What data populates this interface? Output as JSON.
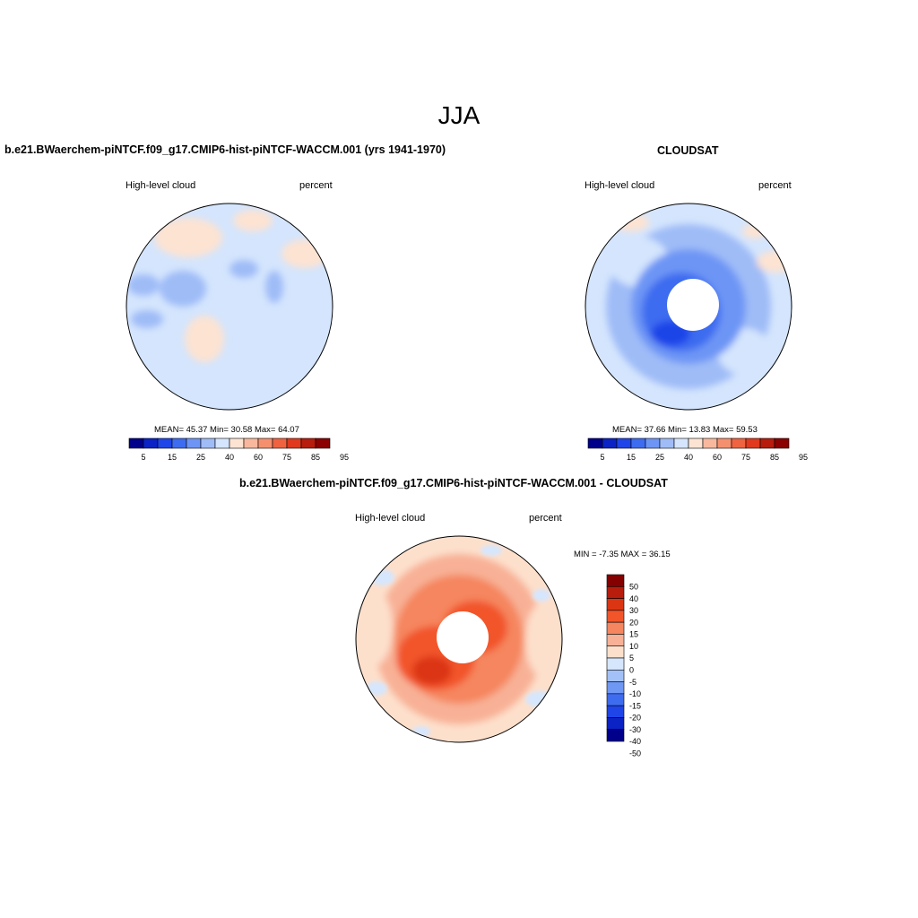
{
  "figure": {
    "title": "JJA"
  },
  "panels": [
    {
      "id": "model",
      "title": "b.e21.BWaerchem-piNTCF.f09_g17.CMIP6-hist-piNTCF-WACCM.001 (yrs 1941-1970)",
      "left_label": "High-level cloud",
      "right_label": "percent",
      "stats": "MEAN=  45.37  Min=  30.58  Max=  64.07",
      "stats_values": {
        "mean": 45.37,
        "min": 30.58,
        "max": 64.07
      },
      "colorbar_ticks": [
        "5",
        "15",
        "25",
        "40",
        "60",
        "75",
        "85",
        "95"
      ],
      "field": "mostly light blue (40-60%) with beige (60-75%) patches over Siberia, Greenland and the North Atlantic; blue (30-40%) patches over the Canadian Archipelago"
    },
    {
      "id": "obs",
      "title": "CLOUDSAT",
      "left_label": "High-level cloud",
      "right_label": "percent",
      "stats": "MEAN=  37.66  Min=  13.83  Max=  59.53",
      "stats_values": {
        "mean": 37.66,
        "min": 13.83,
        "max": 59.53
      },
      "colorbar_ticks": [
        "5",
        "15",
        "25",
        "40",
        "60",
        "75",
        "85",
        "95"
      ],
      "field": "blue decreasing toward the pole (15-40%), missing data poleward of ~82N, beige patches near Europe and Alaska"
    },
    {
      "id": "diff",
      "title": "b.e21.BWaerchem-piNTCF.f09_g17.CMIP6-hist-piNTCF-WACCM.001 - CLOUDSAT",
      "left_label": "High-level cloud",
      "right_label": "percent",
      "stats": "MIN =  -7.35 MAX =  36.15",
      "stats_values": {
        "min": -7.35,
        "max": 36.15
      },
      "colorbar_ticks": [
        "50",
        "40",
        "30",
        "20",
        "15",
        "10",
        "5",
        "0",
        "-5",
        "-10",
        "-15",
        "-20",
        "-30",
        "-40",
        "-50"
      ],
      "field": "positive (red/orange) biases over the Arctic, strongest over Greenland and the Canadian Archipelago; light blue patches along the margins"
    }
  ],
  "palettes": {
    "abs": [
      "#00008b",
      "#0b22c4",
      "#1f45e8",
      "#3e6cf0",
      "#6d95f5",
      "#9fbcf7",
      "#d4e5fd",
      "#fde3d2",
      "#f8b89e",
      "#f5906e",
      "#ef6341",
      "#e0391d",
      "#b71c0c",
      "#8b0000"
    ],
    "diff": [
      "#850000",
      "#b81c0c",
      "#dc3514",
      "#f2552a",
      "#f5865f",
      "#f8b196",
      "#fde0cc",
      "#d6e6fd",
      "#a3c1f8",
      "#6f97f4",
      "#3e6cf0",
      "#1f45e8",
      "#0b22c4",
      "#00008b"
    ]
  },
  "chart_data": [
    {
      "type": "heatmap",
      "projection": "north polar stereographic",
      "title": "b.e21.BWaerchem-piNTCF.f09_g17.CMIP6-hist-piNTCF-WACCM.001 (yrs 1941-1970)",
      "variable": "High-level cloud",
      "units": "percent",
      "mean": 45.37,
      "min": 30.58,
      "max": 64.07,
      "levels": [
        5,
        10,
        15,
        20,
        25,
        30,
        40,
        50,
        60,
        70,
        75,
        80,
        85,
        90,
        95
      ]
    },
    {
      "type": "heatmap",
      "projection": "north polar stereographic",
      "title": "CLOUDSAT",
      "variable": "High-level cloud",
      "units": "percent",
      "mean": 37.66,
      "min": 13.83,
      "max": 59.53,
      "levels": [
        5,
        10,
        15,
        20,
        25,
        30,
        40,
        50,
        60,
        70,
        75,
        80,
        85,
        90,
        95
      ]
    },
    {
      "type": "heatmap",
      "projection": "north polar stereographic",
      "title": "b.e21.BWaerchem-piNTCF.f09_g17.CMIP6-hist-piNTCF-WACCM.001 - CLOUDSAT",
      "variable": "High-level cloud",
      "units": "percent",
      "min": -7.35,
      "max": 36.15,
      "levels": [
        -50,
        -40,
        -30,
        -20,
        -15,
        -10,
        -5,
        0,
        5,
        10,
        15,
        20,
        30,
        40,
        50
      ]
    }
  ]
}
